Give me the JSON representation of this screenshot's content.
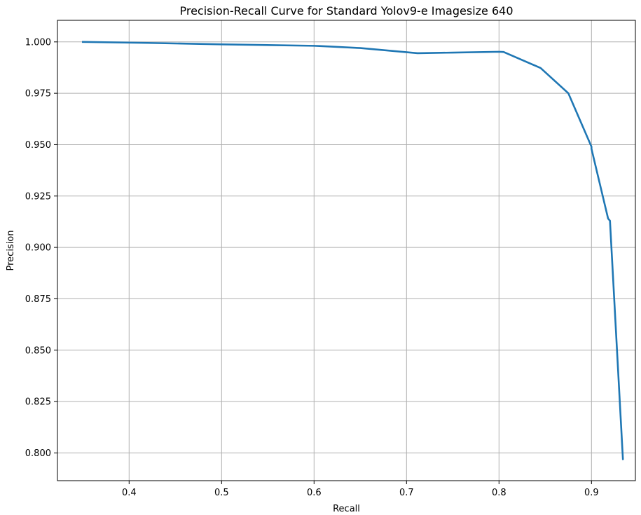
{
  "chart_data": {
    "type": "line",
    "title": "Precision-Recall Curve for Standard Yolov9-e Imagesize 640",
    "xlabel": "Recall",
    "ylabel": "Precision",
    "xlim": [
      0.3225,
      0.9475
    ],
    "ylim": [
      0.7865,
      1.0105
    ],
    "x_ticks": [
      0.4,
      0.5,
      0.6,
      0.7,
      0.8,
      0.9
    ],
    "x_tick_labels": [
      "0.4",
      "0.5",
      "0.6",
      "0.7",
      "0.8",
      "0.9"
    ],
    "y_ticks": [
      0.8,
      0.825,
      0.85,
      0.875,
      0.9,
      0.925,
      0.95,
      0.975,
      1.0
    ],
    "y_tick_labels": [
      "0.800",
      "0.825",
      "0.850",
      "0.875",
      "0.900",
      "0.925",
      "0.950",
      "0.975",
      "1.000"
    ],
    "grid": true,
    "series": [
      {
        "color": "#1f77b4",
        "x": [
          0.35,
          0.42,
          0.5,
          0.6,
          0.606,
          0.65,
          0.712,
          0.75,
          0.8,
          0.805,
          0.845,
          0.875,
          0.9,
          0.9,
          0.918,
          0.92,
          0.934
        ],
        "y": [
          1.0,
          0.9995,
          0.9988,
          0.9981,
          0.998,
          0.997,
          0.9945,
          0.9948,
          0.9952,
          0.9951,
          0.9873,
          0.975,
          0.949,
          0.948,
          0.914,
          0.913,
          0.797
        ]
      }
    ]
  }
}
